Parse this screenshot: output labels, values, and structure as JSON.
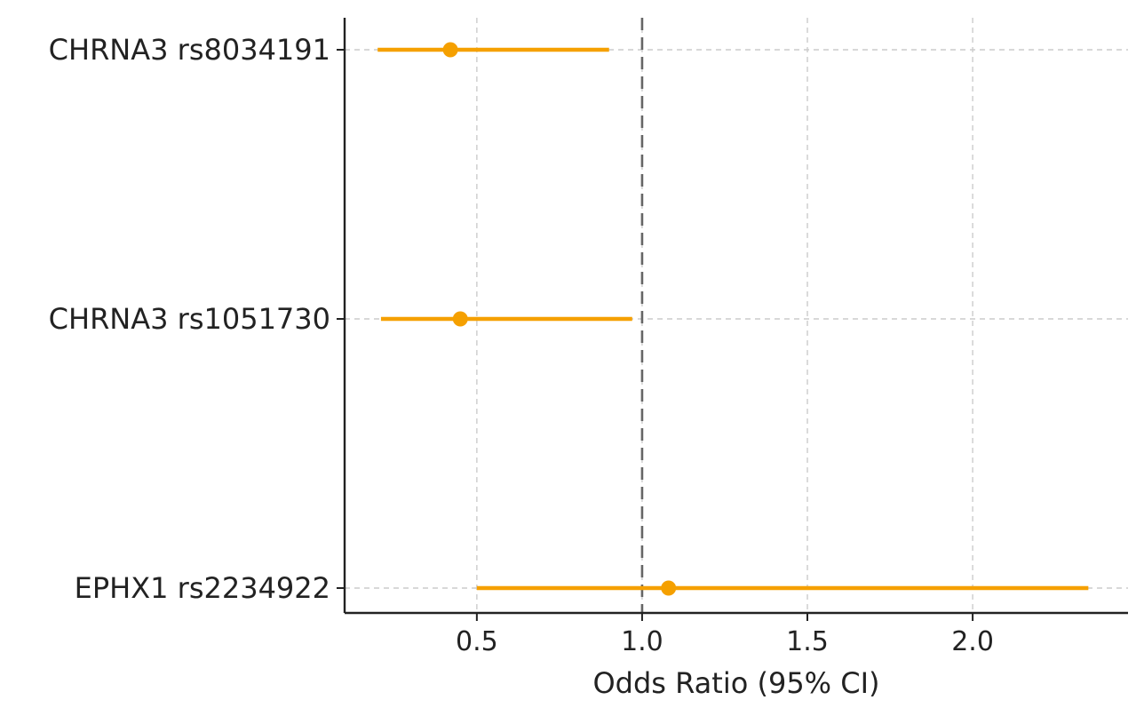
{
  "chart_data": {
    "type": "forest",
    "title": "",
    "xlabel": "Odds Ratio (95% CI)",
    "ylabel": "",
    "xlim": [
      0.1,
      2.47
    ],
    "xticks": [
      0.5,
      1.0,
      1.5,
      2.0
    ],
    "xtick_labels": [
      "0.5",
      "1.0",
      "1.5",
      "2.0"
    ],
    "reference_line": 1.0,
    "grid": true,
    "color": "#f5a000",
    "rows": [
      {
        "label": "CHRNA3 rs8034191",
        "or": 0.42,
        "ci_low": 0.2,
        "ci_high": 0.9
      },
      {
        "label": "CHRNA3 rs1051730",
        "or": 0.45,
        "ci_low": 0.21,
        "ci_high": 0.97
      },
      {
        "label": "EPHX1 rs2234922",
        "or": 1.08,
        "ci_low": 0.5,
        "ci_high": 2.35
      }
    ]
  }
}
